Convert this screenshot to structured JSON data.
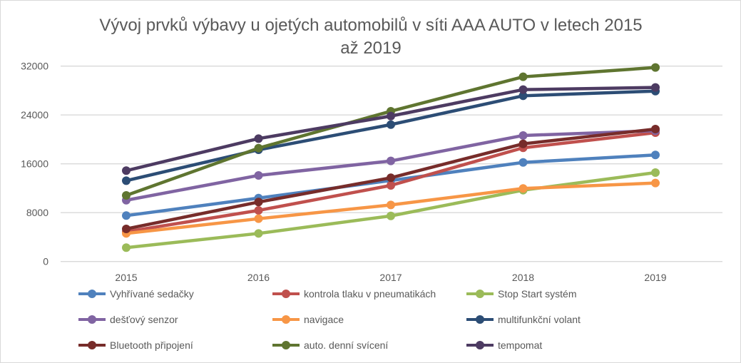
{
  "chart_data": {
    "type": "line",
    "title": "Vývoj prvků výbavy u ojetých automobilů v síti AAA AUTO v letech 2015 až 2019",
    "title_lines": [
      "Vývoj prvků výbavy u ojetých automobilů v síti AAA AUTO v letech 2015",
      "až 2019"
    ],
    "xlabel": "",
    "ylabel": "",
    "x": [
      "2015",
      "2016",
      "2017",
      "2018",
      "2019"
    ],
    "ylim": [
      0,
      32000
    ],
    "yticks": [
      "0",
      "8000",
      "16000",
      "24000",
      "32000"
    ],
    "grid": true,
    "legend_position": "bottom",
    "series": [
      {
        "name": "Vyhřívané sedačky",
        "color": "#4f81bd",
        "values": [
          7520,
          10390,
          13270,
          16230,
          17450
        ]
      },
      {
        "name": "kontrola tlaku v pneumatikách",
        "color": "#c0504d",
        "values": [
          4870,
          8370,
          12460,
          18620,
          21100
        ]
      },
      {
        "name": "Stop Start systém",
        "color": "#9bbb59",
        "values": [
          2270,
          4600,
          7470,
          11680,
          14560
        ]
      },
      {
        "name": "dešťový senzor",
        "color": "#8064a2",
        "values": [
          10040,
          14100,
          16470,
          20640,
          21420
        ]
      },
      {
        "name": "navigace",
        "color": "#f79646",
        "values": [
          4600,
          7010,
          9270,
          11960,
          12850
        ]
      },
      {
        "name": "multifunkční volant",
        "color": "#2c4d75",
        "values": [
          13240,
          18300,
          22420,
          27140,
          27910
        ]
      },
      {
        "name": "Bluetooth připojení",
        "color": "#772c2a",
        "values": [
          5340,
          9740,
          13710,
          19270,
          21690
        ]
      },
      {
        "name": "auto. denní svícení",
        "color": "#5f7530",
        "values": [
          10830,
          18570,
          24610,
          30250,
          31770
        ]
      },
      {
        "name": "tempomat",
        "color": "#4d3b62",
        "values": [
          14880,
          20130,
          23820,
          28150,
          28500
        ]
      }
    ]
  }
}
